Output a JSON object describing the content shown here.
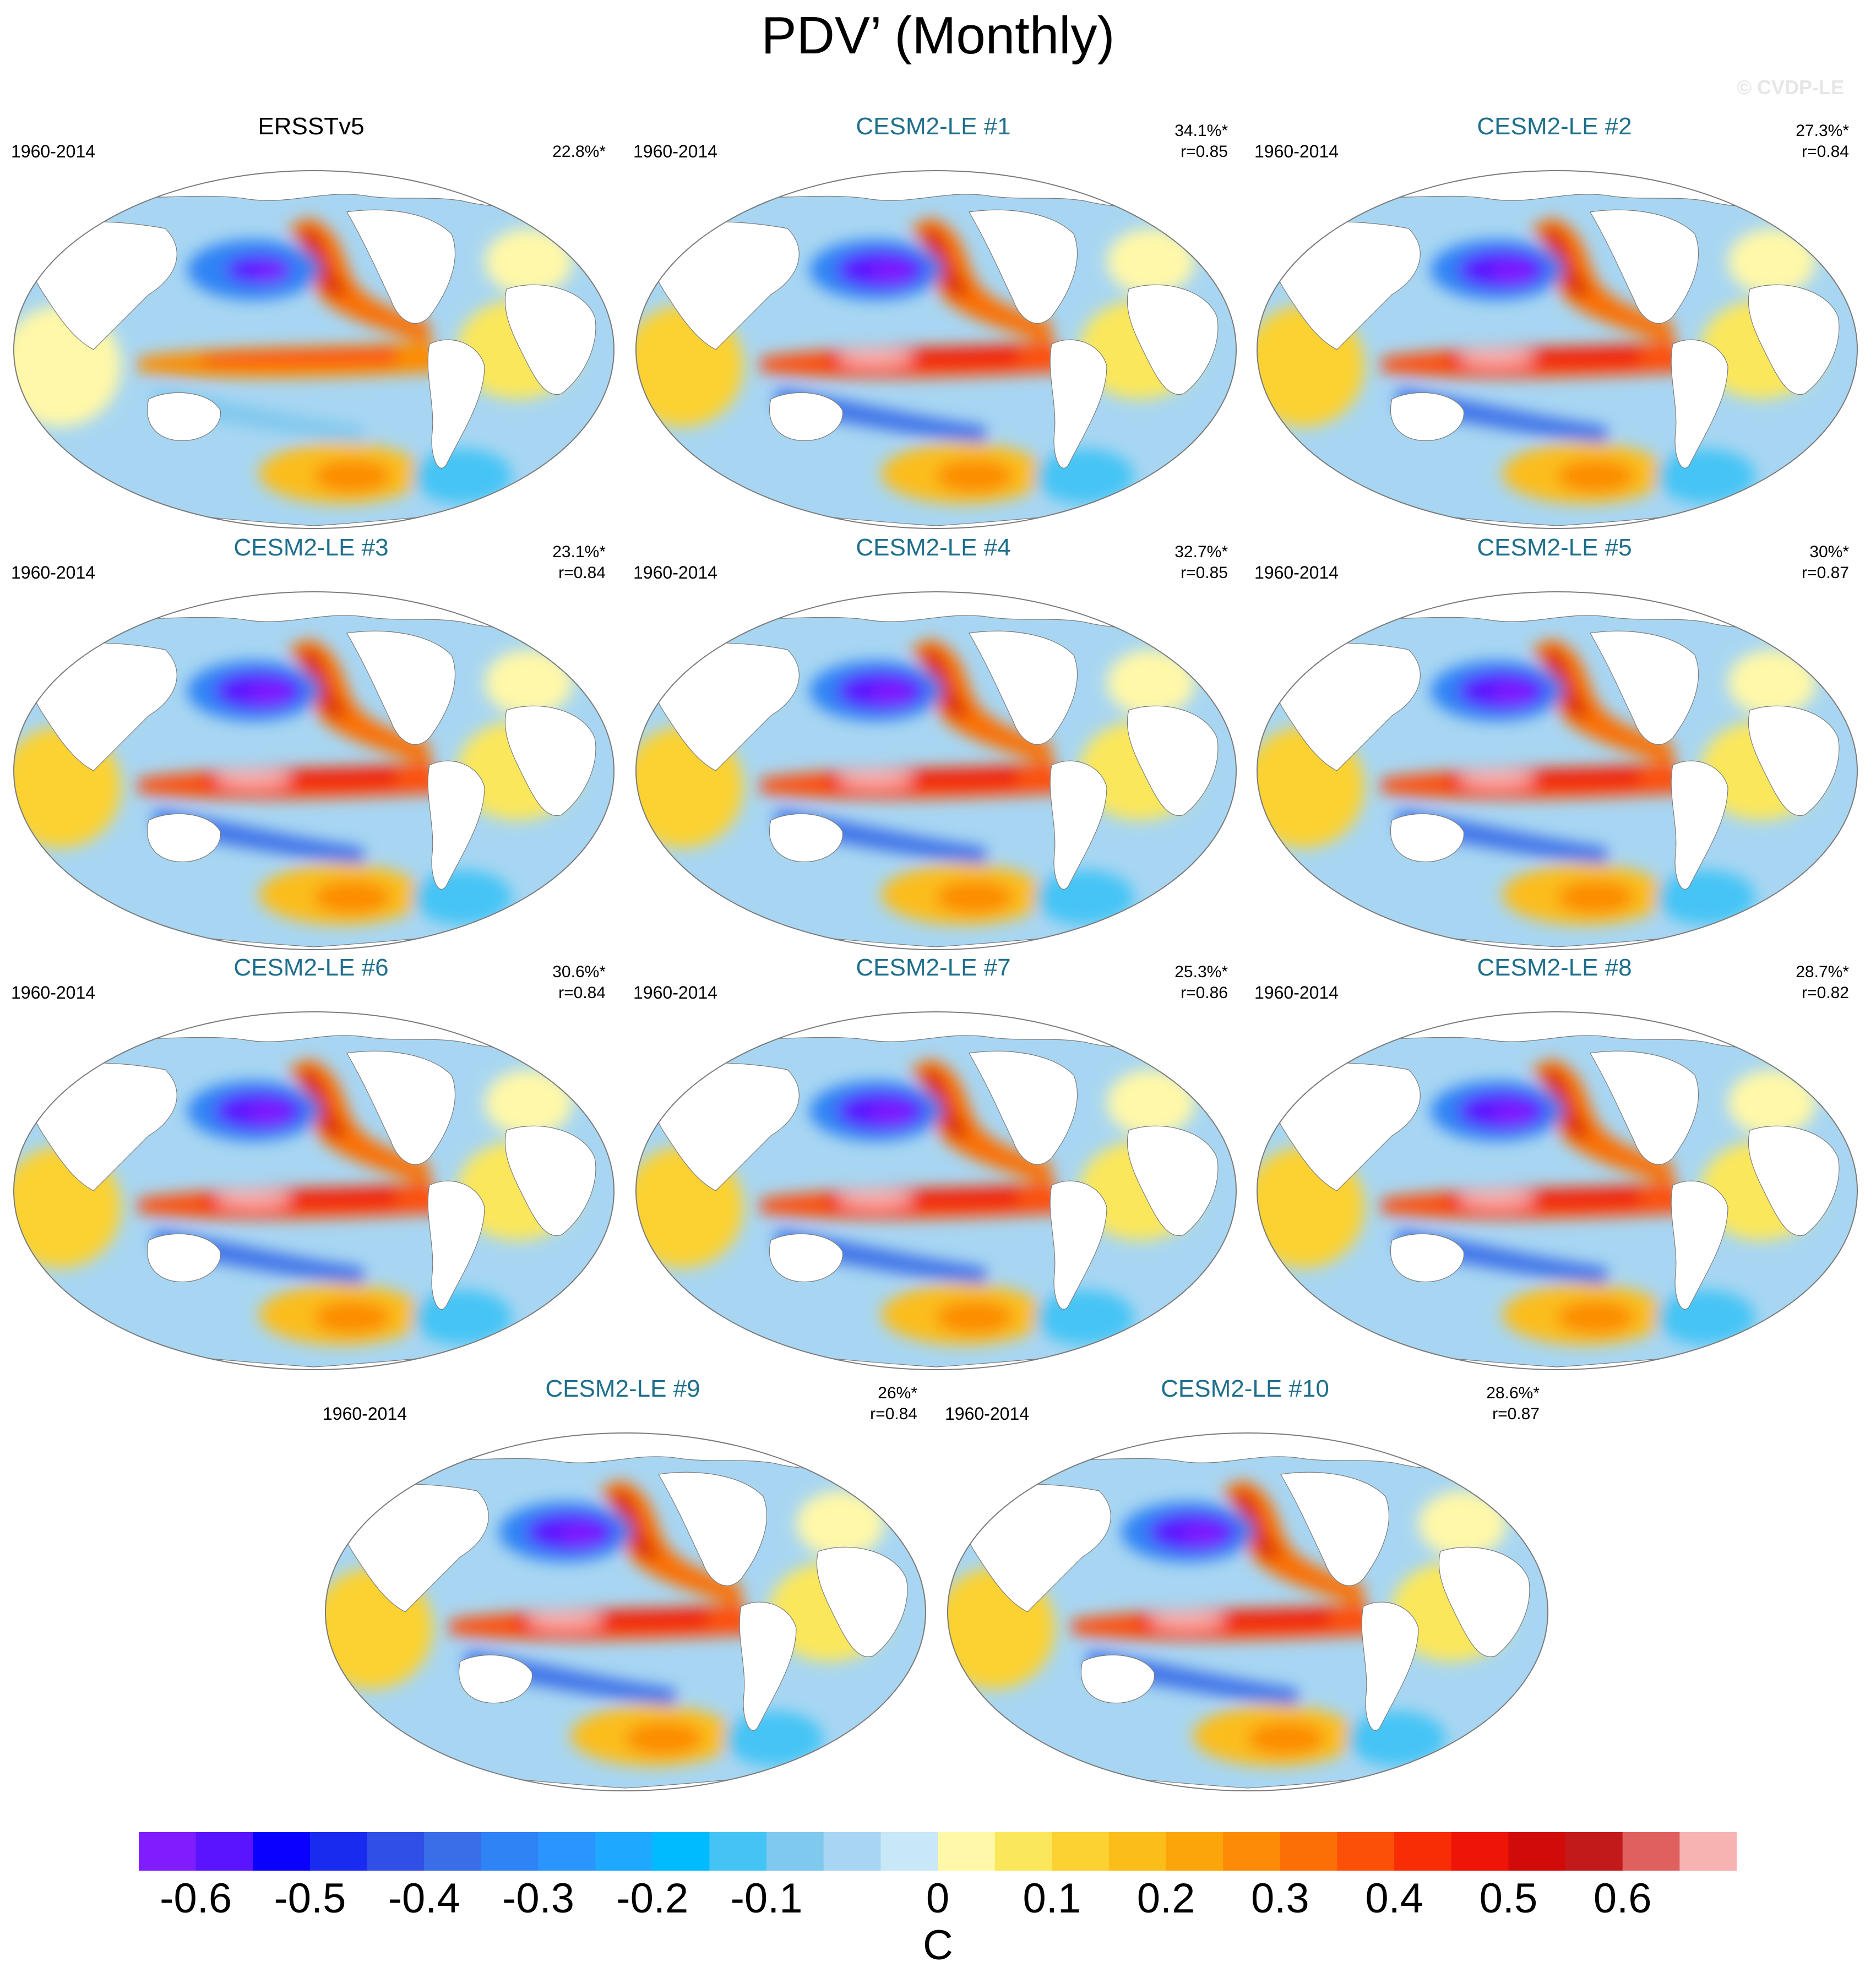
{
  "title": "PDV’ (Monthly)",
  "watermark": "© CVDP-LE",
  "panels": [
    {
      "name": "ERSSTv5",
      "years": "1960-2014",
      "pct": "22.8%*",
      "r": "",
      "observed": true
    },
    {
      "name": "CESM2-LE #1",
      "years": "1960-2014",
      "pct": "34.1%*",
      "r": "r=0.85"
    },
    {
      "name": "CESM2-LE #2",
      "years": "1960-2014",
      "pct": "27.3%*",
      "r": "r=0.84"
    },
    {
      "name": "CESM2-LE #3",
      "years": "1960-2014",
      "pct": "23.1%*",
      "r": "r=0.84"
    },
    {
      "name": "CESM2-LE #4",
      "years": "1960-2014",
      "pct": "32.7%*",
      "r": "r=0.85"
    },
    {
      "name": "CESM2-LE #5",
      "years": "1960-2014",
      "pct": "30%*",
      "r": "r=0.87"
    },
    {
      "name": "CESM2-LE #6",
      "years": "1960-2014",
      "pct": "30.6%*",
      "r": "r=0.84"
    },
    {
      "name": "CESM2-LE #7",
      "years": "1960-2014",
      "pct": "25.3%*",
      "r": "r=0.86"
    },
    {
      "name": "CESM2-LE #8",
      "years": "1960-2014",
      "pct": "28.7%*",
      "r": "r=0.82"
    },
    {
      "name": "CESM2-LE #9",
      "years": "1960-2014",
      "pct": "26%*",
      "r": "r=0.84"
    },
    {
      "name": "CESM2-LE #10",
      "years": "1960-2014",
      "pct": "28.6%*",
      "r": "r=0.87"
    }
  ],
  "colorbar": {
    "unit": "C",
    "colors": [
      "#7f1dff",
      "#5a14ff",
      "#0a00ff",
      "#1a2bf0",
      "#2f4fe6",
      "#3a6ee8",
      "#2f83f5",
      "#2b95ff",
      "#1fa8ff",
      "#00bbff",
      "#44c4f5",
      "#7fc8ee",
      "#a8d6f2",
      "#c8e7f7",
      "#fff8a8",
      "#fbe75c",
      "#fbd232",
      "#fbbd1a",
      "#fca50a",
      "#fc8c05",
      "#fc6e06",
      "#fc4f08",
      "#f82d05",
      "#ee1408",
      "#d10a0a",
      "#c21a1a",
      "#e06060",
      "#f7b2b2"
    ],
    "ticks": [
      "-0.6",
      "-0.5",
      "-0.4",
      "-0.3",
      "-0.2",
      "-0.1",
      "0",
      "0.1",
      "0.2",
      "0.3",
      "0.4",
      "0.5",
      "0.6"
    ],
    "tick_boundaries": [
      1,
      3,
      5,
      7,
      9,
      11,
      14,
      16,
      18,
      20,
      22,
      24,
      26
    ]
  }
}
